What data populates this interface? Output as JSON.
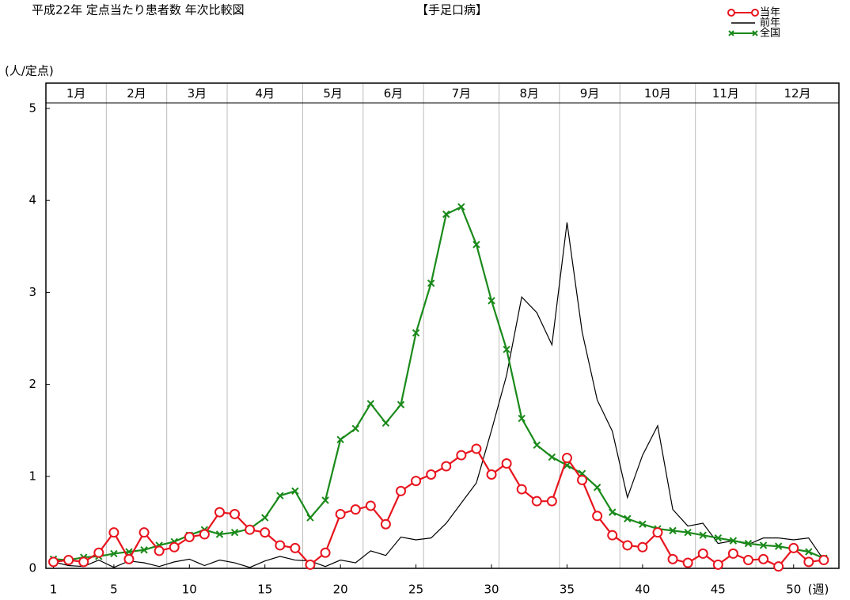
{
  "chart_data": {
    "type": "line",
    "title": "平成22年 定点当たり患者数 年次比較図",
    "subtitle": "【手足口病】",
    "y_label": "(人/定点)",
    "x_label": "(週)",
    "months": [
      "1月",
      "2月",
      "3月",
      "4月",
      "5月",
      "6月",
      "7月",
      "8月",
      "9月",
      "10月",
      "11月",
      "12月"
    ],
    "month_bounds": [
      0.5,
      4.5,
      8.5,
      12.5,
      17.5,
      21.5,
      25.5,
      30.5,
      34.5,
      38.5,
      43.5,
      47.5,
      53
    ],
    "x": [
      1,
      2,
      3,
      4,
      5,
      6,
      7,
      8,
      9,
      10,
      11,
      12,
      13,
      14,
      15,
      16,
      17,
      18,
      19,
      20,
      21,
      22,
      23,
      24,
      25,
      26,
      27,
      28,
      29,
      30,
      31,
      32,
      33,
      34,
      35,
      36,
      37,
      38,
      39,
      40,
      41,
      42,
      43,
      44,
      45,
      46,
      47,
      48,
      49,
      50,
      51,
      52
    ],
    "xlim": [
      0.5,
      53
    ],
    "xticks": [
      1,
      5,
      10,
      15,
      20,
      25,
      30,
      35,
      40,
      45,
      50
    ],
    "ylim": [
      0,
      5
    ],
    "yticks": [
      0,
      1,
      2,
      3,
      4,
      5
    ],
    "series": [
      {
        "name": "当年",
        "color": "#e8141e",
        "marker": "circle",
        "values": [
          0.07,
          0.09,
          0.07,
          0.17,
          0.39,
          0.1,
          0.39,
          0.19,
          0.23,
          0.34,
          0.37,
          0.61,
          0.59,
          0.42,
          0.39,
          0.25,
          0.22,
          0.04,
          0.17,
          0.59,
          0.64,
          0.68,
          0.48,
          0.84,
          0.95,
          1.02,
          1.11,
          1.23,
          1.3,
          1.02,
          1.14,
          0.86,
          0.73,
          0.73,
          1.2,
          0.96,
          0.57,
          0.36,
          0.25,
          0.23,
          0.39,
          0.1,
          0.06,
          0.16,
          0.04,
          0.16,
          0.09,
          0.1,
          0.02,
          0.22,
          0.07,
          0.09
        ]
      },
      {
        "name": "前年",
        "color": "#000000",
        "marker": "none",
        "values": [
          0.07,
          0.03,
          0.02,
          0.09,
          0.01,
          0.08,
          0.06,
          0.02,
          0.07,
          0.1,
          0.03,
          0.09,
          0.06,
          0.01,
          0.08,
          0.13,
          0.09,
          0.08,
          0.02,
          0.09,
          0.06,
          0.19,
          0.14,
          0.34,
          0.31,
          0.33,
          0.49,
          0.71,
          0.93,
          1.5,
          2.1,
          2.95,
          2.78,
          2.43,
          3.76,
          2.57,
          1.83,
          1.49,
          0.77,
          1.23,
          1.55,
          0.64,
          0.46,
          0.49,
          0.27,
          0.3,
          0.26,
          0.33,
          0.33,
          0.31,
          0.33,
          0.09
        ]
      },
      {
        "name": "全国",
        "color": "#1a8a1a",
        "marker": "cross",
        "values": [
          0.1,
          0.09,
          0.12,
          0.13,
          0.16,
          0.18,
          0.2,
          0.25,
          0.29,
          0.36,
          0.42,
          0.37,
          0.39,
          0.43,
          0.55,
          0.79,
          0.84,
          0.55,
          0.74,
          1.4,
          1.52,
          1.79,
          1.58,
          1.78,
          2.56,
          3.1,
          3.85,
          3.93,
          3.52,
          2.91,
          2.38,
          1.63,
          1.34,
          1.21,
          1.12,
          1.03,
          0.88,
          0.61,
          0.54,
          0.48,
          0.43,
          0.41,
          0.39,
          0.36,
          0.33,
          0.3,
          0.27,
          0.25,
          0.24,
          0.21,
          0.18,
          0.11
        ]
      }
    ]
  }
}
